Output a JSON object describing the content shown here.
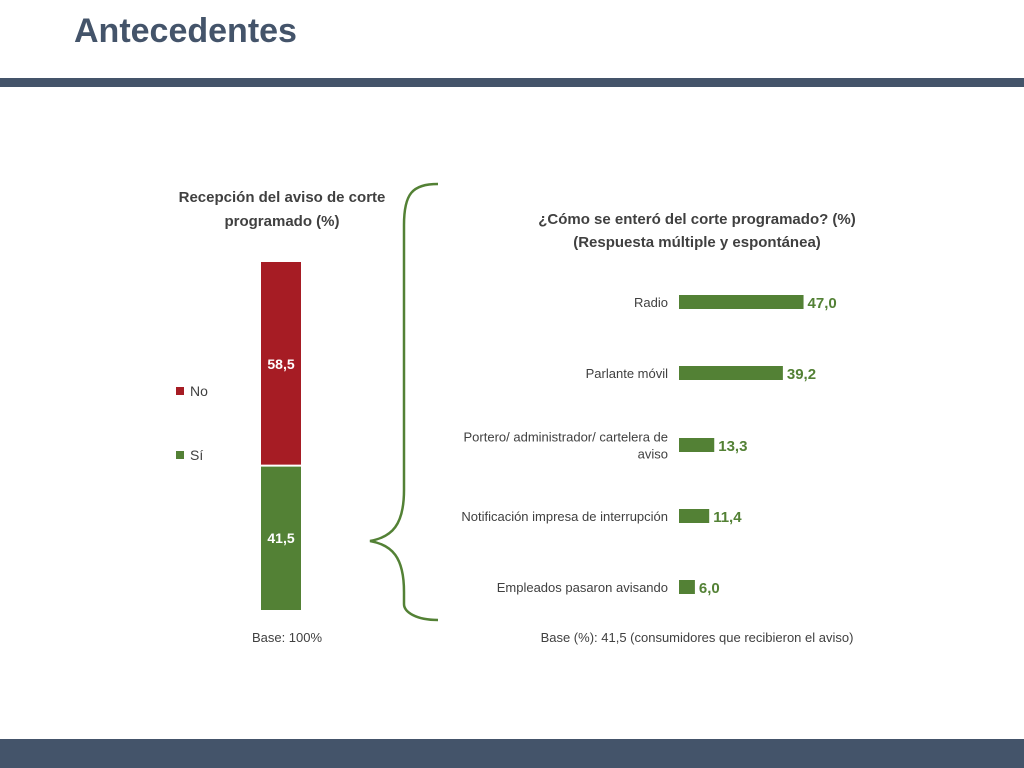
{
  "slide": {
    "title": "Antecedentes"
  },
  "chart_data": [
    {
      "type": "bar",
      "orientation": "stacked-vertical",
      "title": "Recepción del aviso de corte programado (%)",
      "categories": [
        ""
      ],
      "series": [
        {
          "name": "Sí",
          "values": [
            41.5
          ],
          "labels": [
            "41,5"
          ],
          "color": "#538135"
        },
        {
          "name": "No",
          "values": [
            58.5
          ],
          "labels": [
            "58,5"
          ],
          "color": "#a61c24"
        }
      ],
      "ylim": [
        0,
        100
      ],
      "legend": "left",
      "legend_order": [
        "No",
        "Sí"
      ],
      "footnote": "Base: 100%"
    },
    {
      "type": "bar",
      "orientation": "horizontal",
      "title_lines": [
        "¿Cómo se enteró del corte programado? (%)",
        "(Respuesta múltiple y espontánea)"
      ],
      "categories": [
        [
          "Radio"
        ],
        [
          "Parlante móvil"
        ],
        [
          "Portero/ administrador/ cartelera de",
          "aviso"
        ],
        [
          "Notificación impresa de interrupción"
        ],
        [
          "Empleados pasaron avisando"
        ]
      ],
      "values": [
        47.0,
        39.2,
        13.3,
        11.4,
        6.0
      ],
      "labels": [
        "47,0",
        "39,2",
        "13,3",
        "11,4",
        "6,0"
      ],
      "color": "#538135",
      "xlim": [
        0,
        100
      ],
      "footnote": "Base (%): 41,5 (consumidores que recibieron el aviso)"
    }
  ]
}
